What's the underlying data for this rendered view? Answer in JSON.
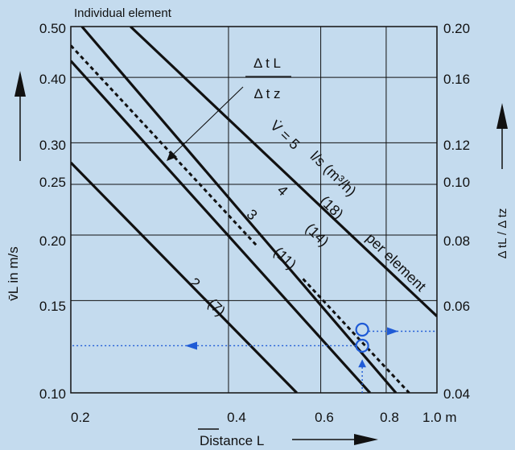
{
  "header": {
    "caption": "Individual element"
  },
  "chart_data": {
    "type": "line",
    "title": "Individual element",
    "xlabel": "Distance L",
    "ylabel": "v̄L in m/s",
    "y2label": "Δ tL / Δ tz",
    "xscale": "log",
    "yscale": "log",
    "xlim": [
      0.2,
      1.0
    ],
    "ylim": [
      0.1,
      0.5
    ],
    "y2lim": [
      0.04,
      0.2
    ],
    "grid": true,
    "x_ticks": [
      0.2,
      0.4,
      0.6,
      0.8,
      1.0
    ],
    "x_tick_labels": [
      "0.2",
      "0.4",
      "0.6",
      "0.8",
      "1.0 m"
    ],
    "y_ticks": [
      0.1,
      0.15,
      0.2,
      0.25,
      0.3,
      0.4,
      0.5
    ],
    "y_tick_labels": [
      "0.10",
      "0.15",
      "0.20",
      "0.25",
      "0.30",
      "0.40",
      "0.50"
    ],
    "y2_ticks": [
      0.04,
      0.06,
      0.08,
      0.1,
      0.12,
      0.16,
      0.2
    ],
    "y2_tick_labels": [
      "0.04",
      "0.06",
      "0.08",
      "0.10",
      "0.12",
      "0.16",
      "0.20"
    ],
    "series": [
      {
        "name": "2 (7)",
        "x": [
          0.2,
          0.54
        ],
        "y": [
          0.275,
          0.1
        ]
      },
      {
        "name": "3 (11)",
        "x": [
          0.2,
          0.745
        ],
        "y": [
          0.43,
          0.1
        ]
      },
      {
        "name": "4 (14)",
        "x": [
          0.21,
          0.835
        ],
        "y": [
          0.5,
          0.1
        ]
      },
      {
        "name": "5 (18)",
        "x": [
          0.26,
          1.0
        ],
        "y": [
          0.5,
          0.14
        ]
      },
      {
        "name": "Δt L / Δt z (upper)",
        "x": [
          0.2,
          0.455
        ],
        "y": [
          0.46,
          0.19
        ]
      },
      {
        "name": "Δt L / Δt z (lower)",
        "x": [
          0.555,
          0.885
        ],
        "y": [
          0.165,
          0.1
        ]
      }
    ],
    "annotations": {
      "ratio_numerator": "Δ t L",
      "ratio_denominator": "Δ t z",
      "flow_label": "V̇ = 5",
      "flow_unit": "l/s (m³/h)",
      "per_element": "per element",
      "curve_labels": [
        "2",
        "(7)",
        "3",
        "(11)",
        "4",
        "(14)",
        "(18)"
      ]
    },
    "example": {
      "x": 0.72,
      "y": [
        0.123,
        0.132
      ],
      "y_left": 0.123,
      "y_right": 0.052
    }
  }
}
